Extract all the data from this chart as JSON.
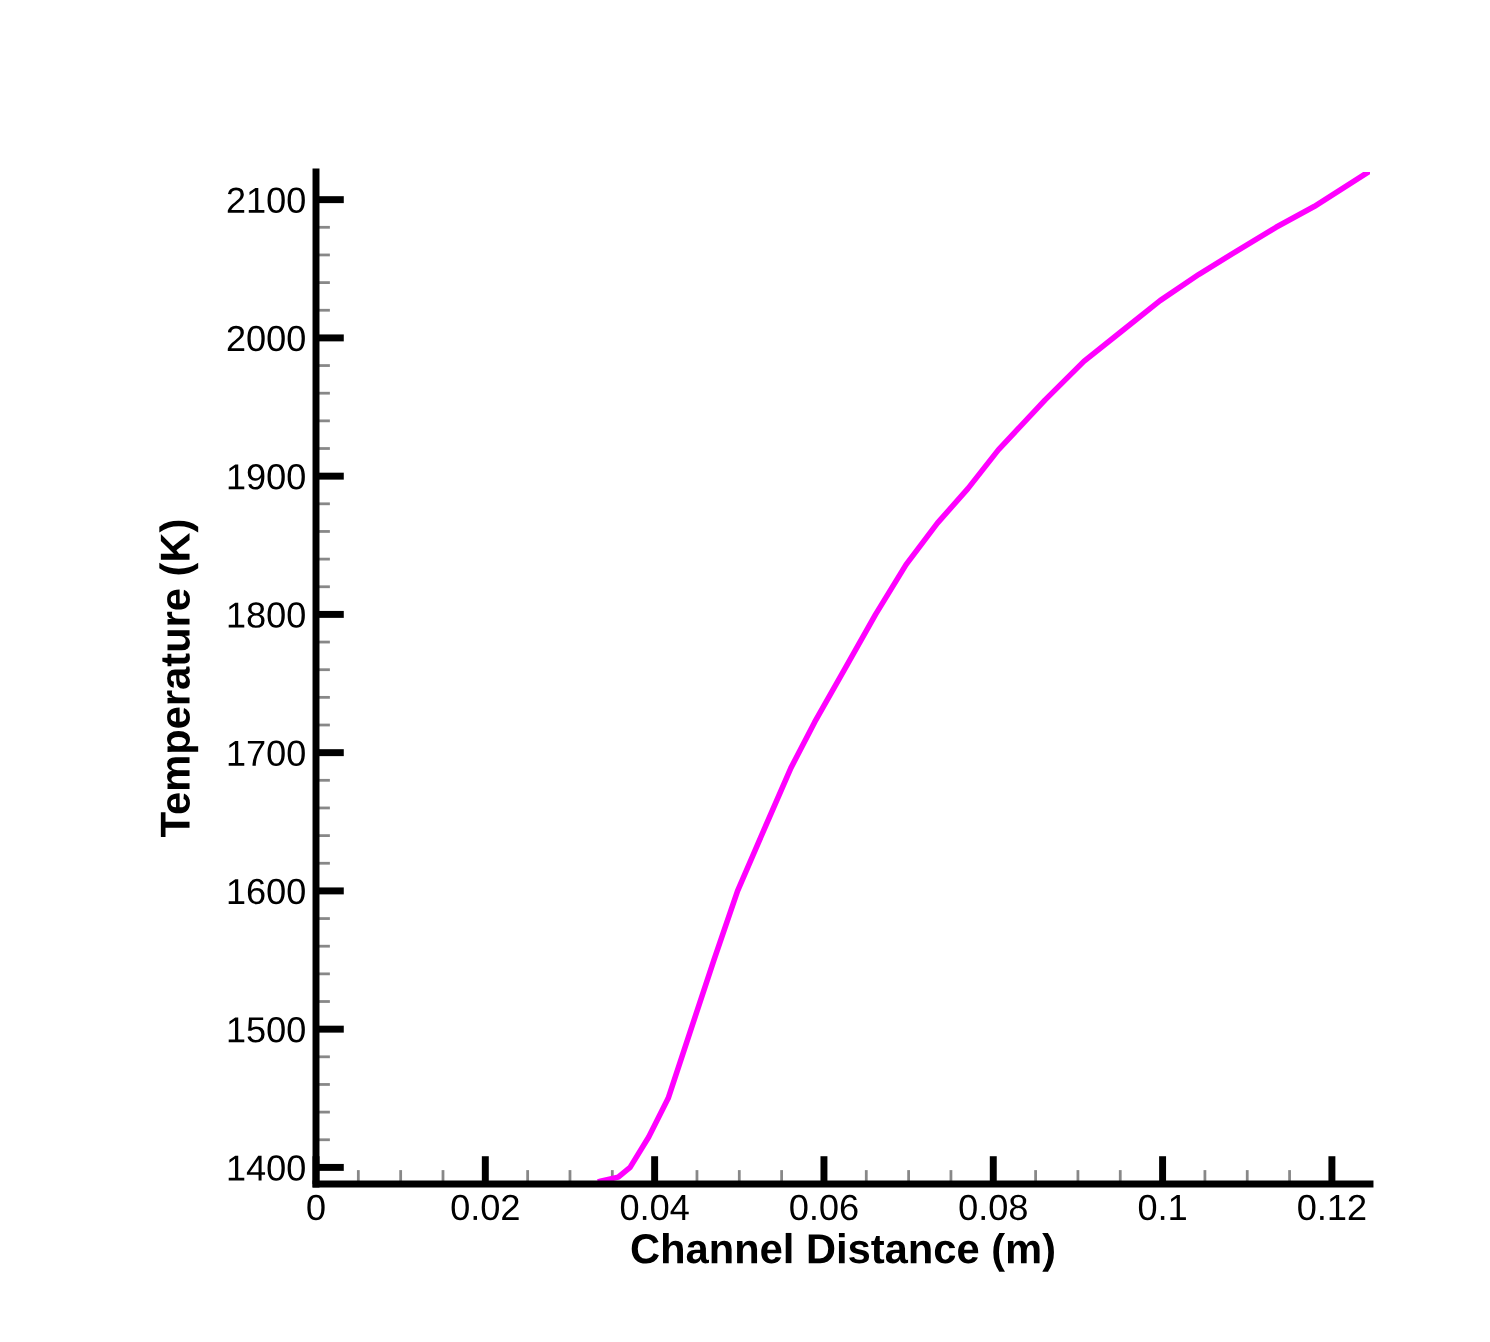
{
  "chart_data": {
    "type": "line",
    "xlabel": "Channel Distance (m)",
    "ylabel": "Temperature (K)",
    "xlim": [
      0,
      0.1245
    ],
    "ylim": [
      1388,
      2120
    ],
    "xticks": [
      0,
      {
        "value": 0.005,
        "label": null
      },
      {
        "value": 0.01,
        "label": null
      },
      {
        "value": 0.015,
        "label": null
      },
      0.02,
      {
        "value": 0.025,
        "label": null
      },
      {
        "value": 0.03,
        "label": null
      },
      {
        "value": 0.035,
        "label": null
      },
      0.04,
      {
        "value": 0.045,
        "label": null
      },
      {
        "value": 0.05,
        "label": null
      },
      {
        "value": 0.055,
        "label": null
      },
      0.06,
      {
        "value": 0.065,
        "label": null
      },
      {
        "value": 0.07,
        "label": null
      },
      {
        "value": 0.075,
        "label": null
      },
      0.08,
      {
        "value": 0.085,
        "label": null
      },
      {
        "value": 0.09,
        "label": null
      },
      {
        "value": 0.095,
        "label": null
      },
      0.1,
      {
        "value": 0.105,
        "label": null
      },
      {
        "value": 0.11,
        "label": null
      },
      {
        "value": 0.115,
        "label": null
      },
      0.12
    ],
    "yticks": [
      1400,
      {
        "value": 1420,
        "label": null
      },
      {
        "value": 1440,
        "label": null
      },
      {
        "value": 1460,
        "label": null
      },
      {
        "value": 1480,
        "label": null
      },
      1500,
      {
        "value": 1520,
        "label": null
      },
      {
        "value": 1540,
        "label": null
      },
      {
        "value": 1560,
        "label": null
      },
      {
        "value": 1580,
        "label": null
      },
      1600,
      {
        "value": 1620,
        "label": null
      },
      {
        "value": 1640,
        "label": null
      },
      {
        "value": 1660,
        "label": null
      },
      {
        "value": 1680,
        "label": null
      },
      1700,
      {
        "value": 1720,
        "label": null
      },
      {
        "value": 1740,
        "label": null
      },
      {
        "value": 1760,
        "label": null
      },
      {
        "value": 1780,
        "label": null
      },
      1800,
      {
        "value": 1820,
        "label": null
      },
      {
        "value": 1840,
        "label": null
      },
      {
        "value": 1860,
        "label": null
      },
      {
        "value": 1880,
        "label": null
      },
      1900,
      {
        "value": 1920,
        "label": null
      },
      {
        "value": 1940,
        "label": null
      },
      {
        "value": 1960,
        "label": null
      },
      {
        "value": 1980,
        "label": null
      },
      2000,
      {
        "value": 2020,
        "label": null
      },
      {
        "value": 2040,
        "label": null
      },
      {
        "value": 2060,
        "label": null
      },
      {
        "value": 2080,
        "label": null
      },
      2100
    ],
    "grid": false,
    "legend": false,
    "line_style": "solid",
    "series": [
      {
        "color": "#ff00ff",
        "x": [
          0.0336,
          0.0357,
          0.0371,
          0.0393,
          0.0416,
          0.0443,
          0.047,
          0.0498,
          0.0529,
          0.0561,
          0.0589,
          0.0625,
          0.0661,
          0.0697,
          0.0734,
          0.077,
          0.0806,
          0.0861,
          0.0907,
          0.0952,
          0.0997,
          0.1043,
          0.1088,
          0.1134,
          0.1179,
          0.1243
        ],
        "values": [
          1390,
          1393,
          1400,
          1422,
          1450,
          1500,
          1550,
          1600,
          1644,
          1689,
          1722,
          1761,
          1800,
          1836,
          1866,
          1891,
          1919,
          1955,
          1983,
          2005,
          2027,
          2046,
          2063,
          2080,
          2095,
          2120
        ]
      }
    ]
  }
}
